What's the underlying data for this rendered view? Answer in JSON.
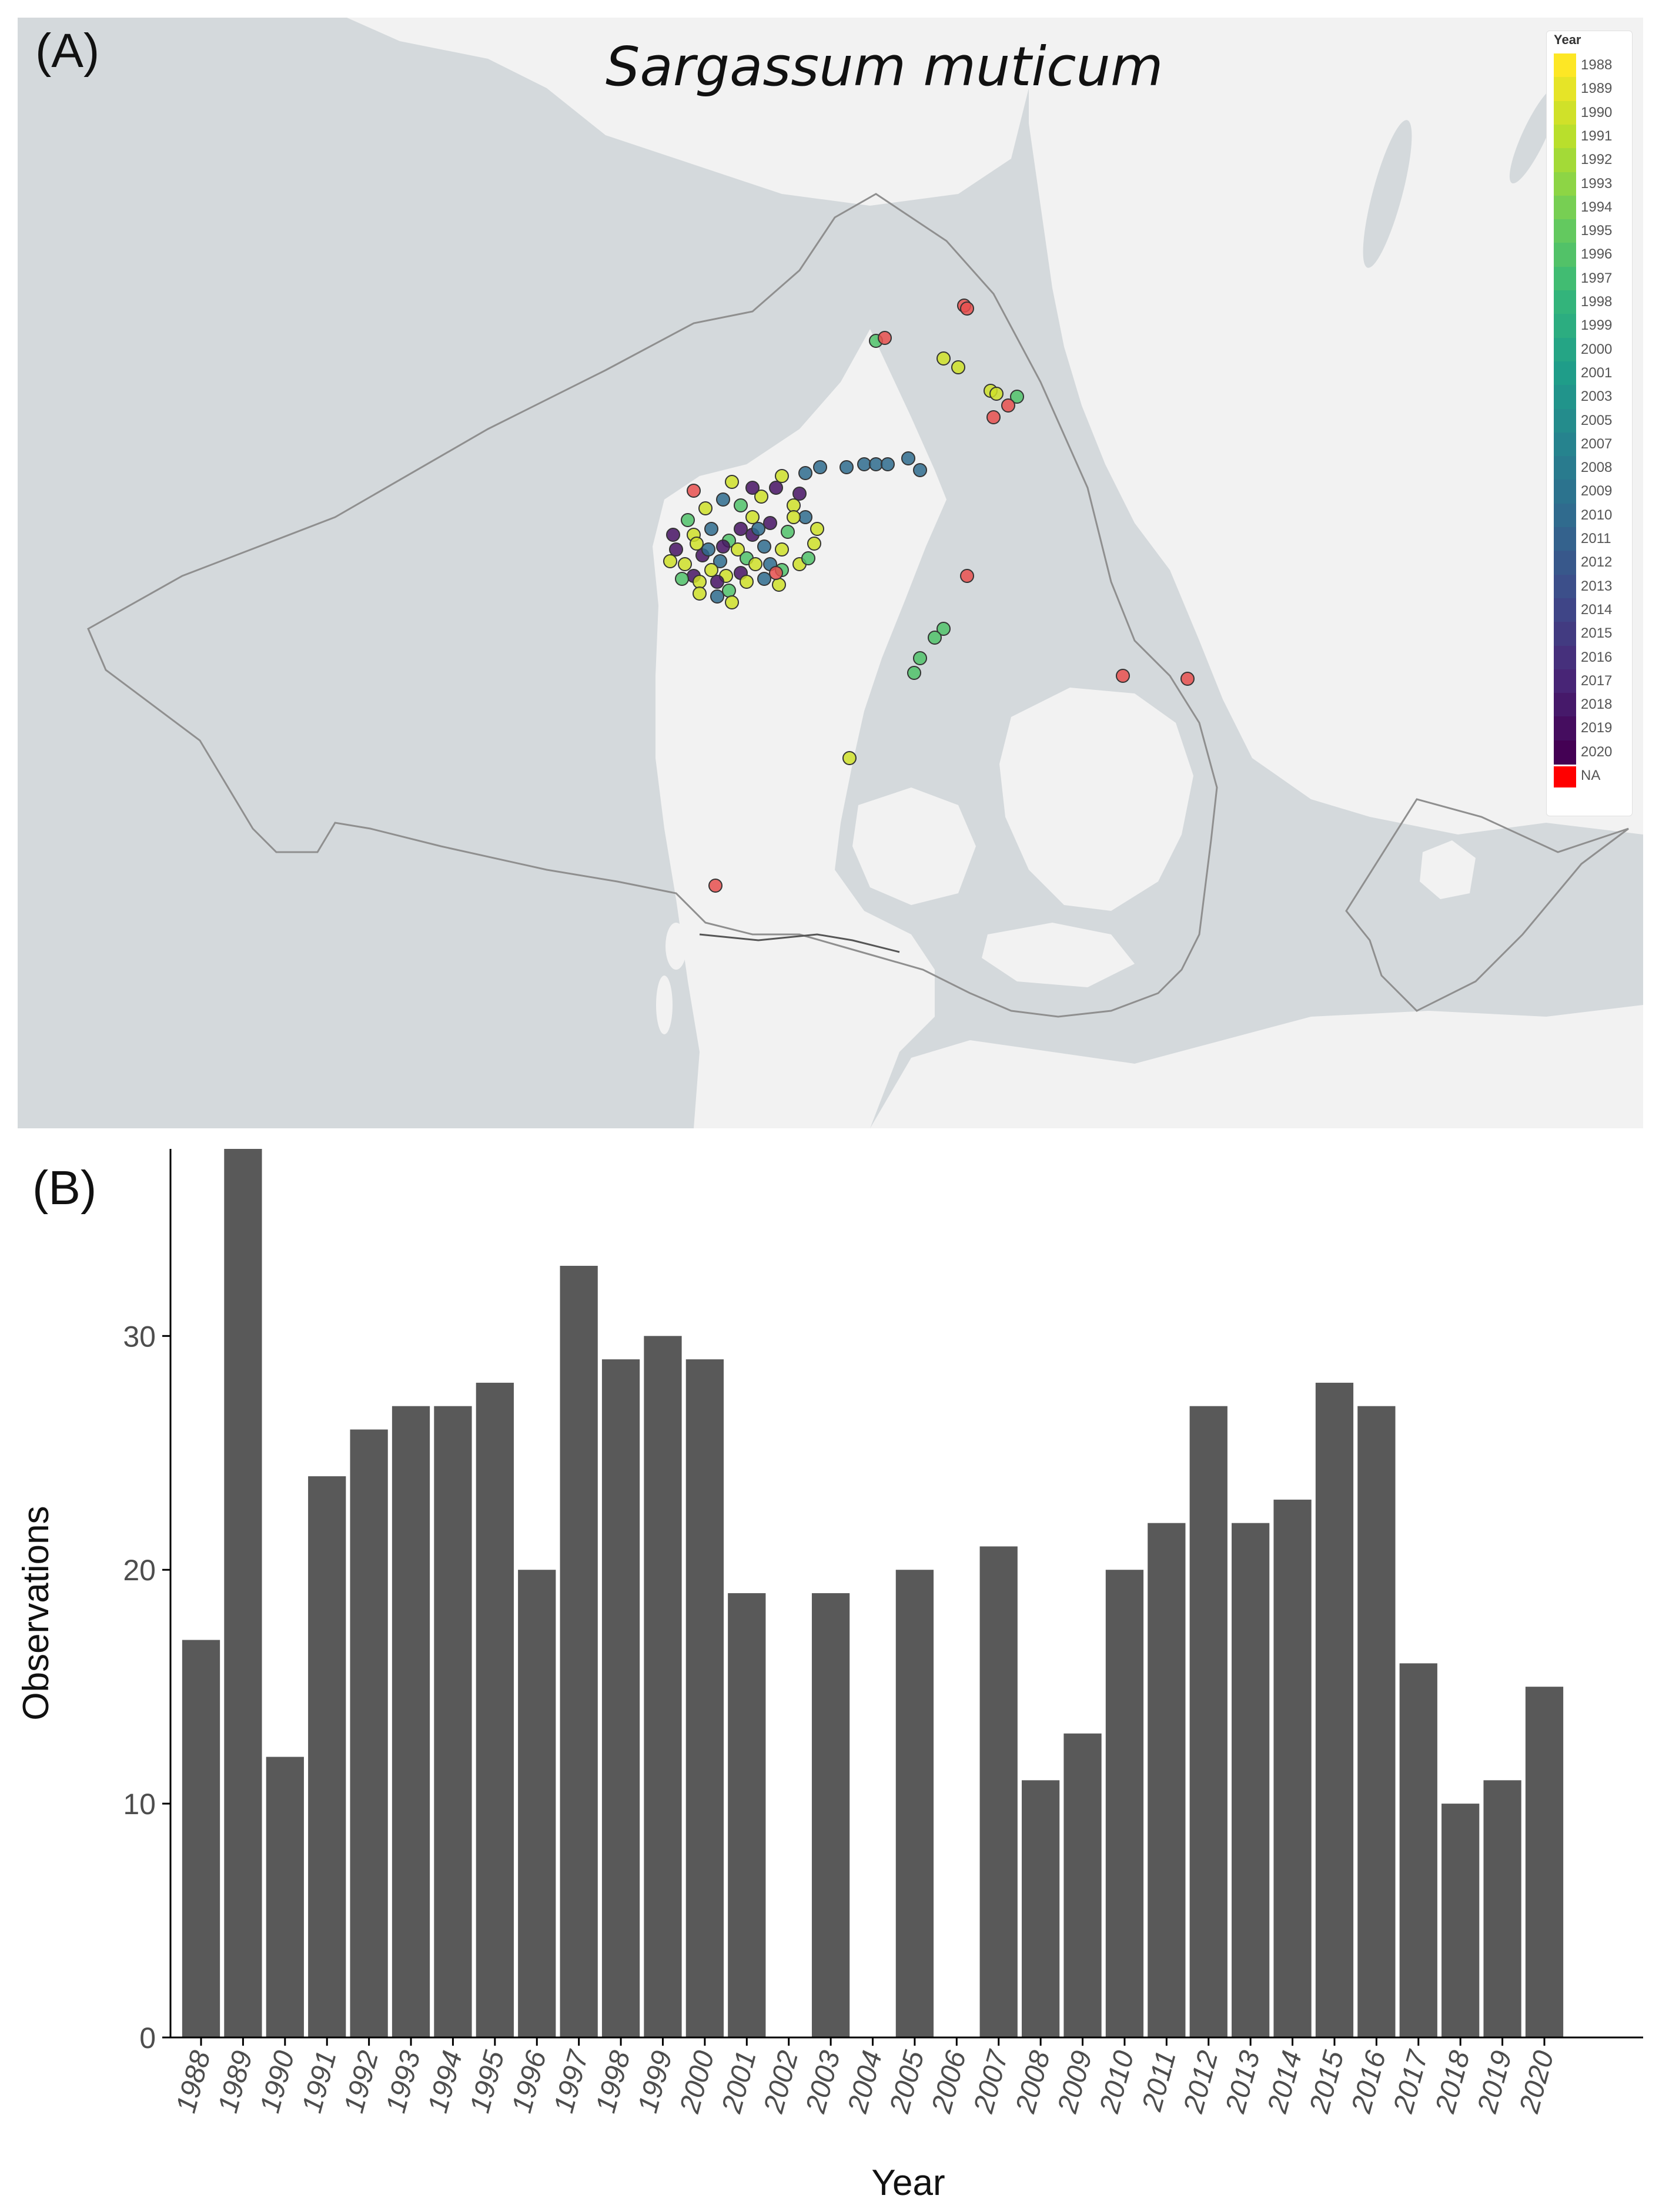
{
  "panel_a": {
    "label": "(A)",
    "title": "Sargassum muticum",
    "legend": {
      "title": "Year",
      "entries": [
        "1988",
        "1989",
        "1990",
        "1991",
        "1992",
        "1993",
        "1994",
        "1995",
        "1996",
        "1997",
        "1998",
        "1999",
        "2000",
        "2001",
        "2003",
        "2005",
        "2007",
        "2008",
        "2009",
        "2010",
        "2011",
        "2012",
        "2013",
        "2014",
        "2015",
        "2016",
        "2017",
        "2018",
        "2019",
        "2020",
        "NA"
      ],
      "placement": "top-right",
      "na_color": "#ff0000"
    },
    "colors": {
      "sea": "#d4d9dc",
      "land": "#f2f2f2",
      "boundary": "#8f8f8f"
    }
  },
  "panel_b": {
    "label": "(B)"
  },
  "chart_data": {
    "type": "bar",
    "categories": [
      "1988",
      "1989",
      "1990",
      "1991",
      "1992",
      "1993",
      "1994",
      "1995",
      "1996",
      "1997",
      "1998",
      "1999",
      "2000",
      "2001",
      "2002",
      "2003",
      "2004",
      "2005",
      "2006",
      "2007",
      "2008",
      "2009",
      "2010",
      "2011",
      "2012",
      "2013",
      "2014",
      "2015",
      "2016",
      "2017",
      "2018",
      "2019",
      "2020"
    ],
    "values": [
      17,
      38,
      12,
      24,
      26,
      27,
      27,
      28,
      20,
      33,
      29,
      30,
      29,
      19,
      0,
      19,
      0,
      20,
      0,
      21,
      11,
      13,
      20,
      22,
      27,
      22,
      23,
      28,
      27,
      16,
      10,
      11,
      15
    ],
    "xlabel": "Year",
    "ylabel": "Observations",
    "yticks": [
      "0",
      "10",
      "20",
      "30"
    ],
    "ylim": [
      0,
      38
    ],
    "grid": false,
    "bar_color": "#595959"
  }
}
